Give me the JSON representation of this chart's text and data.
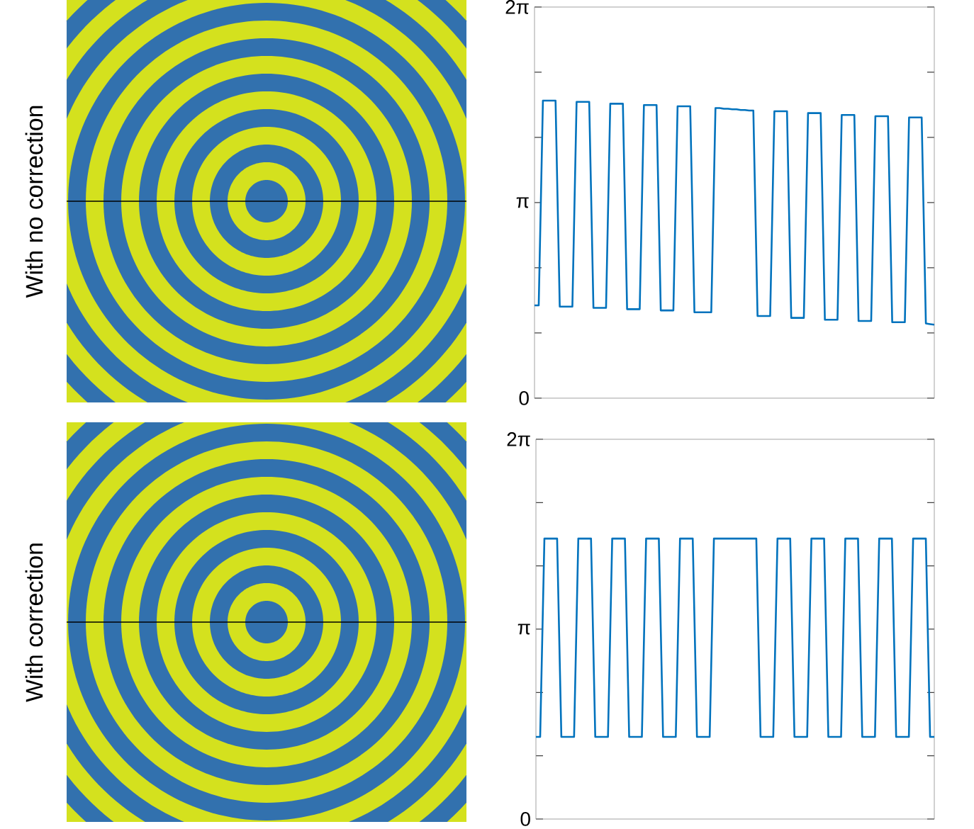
{
  "chart_data": [
    {
      "type": "line",
      "ylabel": "With no correction",
      "color": "#0072bd",
      "ylim": [
        0,
        6.2832
      ],
      "tick_labels": "y",
      "yticks": [
        {
          "value": 0,
          "label": "0"
        },
        {
          "value": 1.0472,
          "label": null
        },
        {
          "value": 2.0944,
          "label": null
        },
        {
          "value": 3.1416,
          "label": "π"
        },
        {
          "value": 4.1888,
          "label": null
        },
        {
          "value": 5.236,
          "label": null
        },
        {
          "value": 6.2832,
          "label": "2π"
        }
      ],
      "categories": [
        null,
        null,
        null,
        null,
        null,
        null,
        null,
        null,
        null,
        null,
        null,
        null,
        null,
        null,
        null,
        null,
        null,
        null,
        null,
        null,
        null,
        null,
        null,
        null,
        null,
        null,
        null,
        null,
        null,
        null,
        null,
        null,
        null,
        null,
        null,
        null,
        null,
        null,
        null,
        null,
        null,
        null,
        null,
        null,
        null,
        null,
        null,
        null,
        null,
        null,
        null,
        null,
        null,
        null,
        null,
        null,
        null,
        null,
        null,
        null,
        null,
        null,
        null,
        null,
        null,
        null,
        null,
        null,
        null,
        null,
        null,
        null,
        null,
        null,
        null,
        null,
        null,
        null,
        null,
        null,
        null,
        null,
        null,
        null,
        null,
        null,
        null,
        null,
        null,
        null,
        null,
        null,
        null,
        null,
        null,
        null
      ],
      "values": [
        1.49,
        1.49,
        4.78,
        4.78,
        4.78,
        4.78,
        1.47,
        1.47,
        1.47,
        1.47,
        4.76,
        4.76,
        4.76,
        4.76,
        1.45,
        1.45,
        1.45,
        1.45,
        4.73,
        4.73,
        4.73,
        4.73,
        1.43,
        1.43,
        1.43,
        1.43,
        4.71,
        4.71,
        4.71,
        4.71,
        1.41,
        1.41,
        1.41,
        1.41,
        4.69,
        4.69,
        4.69,
        4.69,
        1.38,
        1.38,
        1.38,
        1.38,
        1.38,
        4.66,
        4.66,
        4.65,
        4.65,
        4.64,
        4.64,
        4.63,
        4.63,
        4.62,
        4.62,
        1.32,
        1.32,
        1.32,
        1.32,
        4.61,
        4.61,
        4.61,
        4.61,
        1.29,
        1.29,
        1.29,
        1.29,
        4.58,
        4.58,
        4.58,
        4.58,
        1.26,
        1.26,
        1.26,
        1.26,
        4.55,
        4.55,
        4.55,
        4.55,
        1.24,
        1.24,
        1.24,
        1.24,
        4.53,
        4.53,
        4.53,
        4.53,
        1.22,
        1.22,
        1.22,
        1.22,
        4.51,
        4.51,
        4.51,
        4.51,
        1.2,
        1.19,
        1.18
      ]
    },
    {
      "type": "line",
      "ylabel": "With correction",
      "color": "#0072bd",
      "ylim": [
        0,
        6.2832
      ],
      "tick_labels": "y",
      "yticks": [
        {
          "value": 0,
          "label": "0"
        },
        {
          "value": 1.0472,
          "label": null
        },
        {
          "value": 2.0944,
          "label": null
        },
        {
          "value": 3.1416,
          "label": "π"
        },
        {
          "value": 4.1888,
          "label": null
        },
        {
          "value": 5.236,
          "label": null
        },
        {
          "value": 6.2832,
          "label": "2π"
        }
      ],
      "categories": [
        null,
        null,
        null,
        null,
        null,
        null,
        null,
        null,
        null,
        null,
        null,
        null,
        null,
        null,
        null,
        null,
        null,
        null,
        null,
        null,
        null,
        null,
        null,
        null,
        null,
        null,
        null,
        null,
        null,
        null,
        null,
        null,
        null,
        null,
        null,
        null,
        null,
        null,
        null,
        null,
        null,
        null,
        null,
        null,
        null,
        null,
        null,
        null,
        null,
        null,
        null,
        null,
        null,
        null,
        null,
        null,
        null,
        null,
        null,
        null,
        null,
        null,
        null,
        null,
        null,
        null,
        null,
        null,
        null,
        null,
        null,
        null,
        null,
        null,
        null,
        null,
        null,
        null,
        null,
        null,
        null,
        null,
        null,
        null,
        null,
        null,
        null,
        null,
        null,
        null,
        null,
        null,
        null,
        null,
        null
      ],
      "values": [
        1.36,
        1.36,
        4.64,
        4.64,
        4.64,
        4.64,
        1.36,
        1.36,
        1.36,
        1.36,
        4.64,
        4.64,
        4.64,
        4.64,
        1.36,
        1.36,
        1.36,
        1.36,
        4.64,
        4.64,
        4.64,
        4.64,
        1.36,
        1.36,
        1.36,
        1.36,
        4.64,
        4.64,
        4.64,
        4.64,
        1.36,
        1.36,
        1.36,
        1.36,
        4.64,
        4.64,
        4.64,
        4.64,
        1.36,
        1.36,
        1.36,
        1.36,
        4.64,
        4.64,
        4.64,
        4.64,
        4.64,
        4.64,
        4.64,
        4.64,
        4.64,
        4.64,
        4.64,
        1.36,
        1.36,
        1.36,
        1.36,
        4.64,
        4.64,
        4.64,
        4.64,
        1.36,
        1.36,
        1.36,
        1.36,
        4.64,
        4.64,
        4.64,
        4.64,
        1.36,
        1.36,
        1.36,
        1.36,
        4.64,
        4.64,
        4.64,
        4.64,
        1.36,
        1.36,
        1.36,
        1.36,
        4.64,
        4.64,
        4.64,
        4.64,
        1.36,
        1.36,
        1.36,
        1.36,
        4.64,
        4.64,
        4.64,
        4.64,
        1.36,
        1.36
      ]
    }
  ]
}
